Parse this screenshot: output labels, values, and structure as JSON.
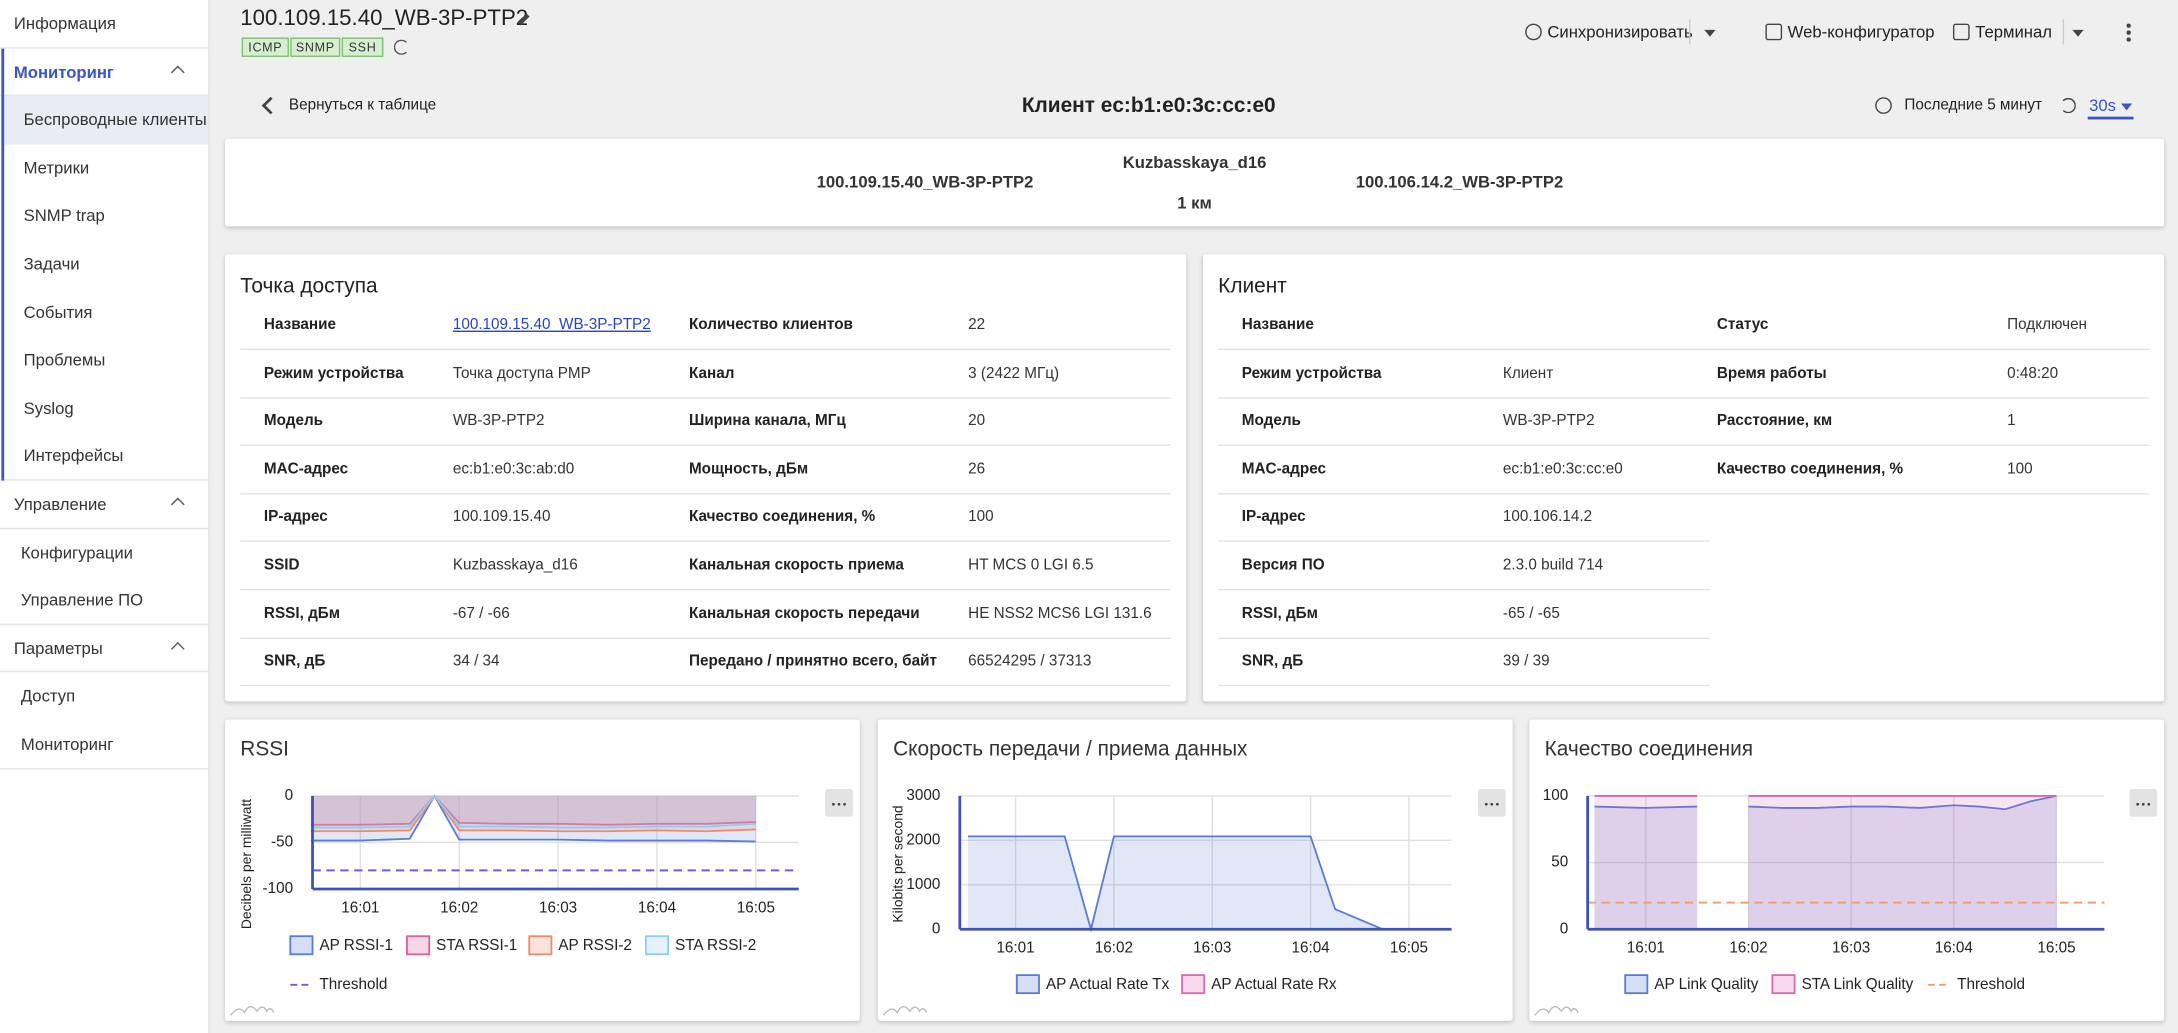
{
  "sidebar": {
    "top": "Информация",
    "sections": [
      {
        "title": "Мониторинг",
        "active": true,
        "items": [
          {
            "label": "Беспроводные клиенты",
            "selected": true
          },
          {
            "label": "Метрики"
          },
          {
            "label": "SNMP trap"
          },
          {
            "label": "Задачи"
          },
          {
            "label": "События"
          },
          {
            "label": "Проблемы"
          },
          {
            "label": "Syslog"
          },
          {
            "label": "Интерфейсы"
          }
        ]
      },
      {
        "title": "Управление",
        "items": [
          {
            "label": "Конфигурации"
          },
          {
            "label": "Управление ПО"
          }
        ]
      },
      {
        "title": "Параметры",
        "items": [
          {
            "label": "Доступ"
          },
          {
            "label": "Мониторинг"
          }
        ]
      }
    ]
  },
  "header": {
    "title": "100.109.15.40_WB-3P-PTP2",
    "tags": [
      "ICMP",
      "SNMP",
      "SSH"
    ],
    "actions": [
      "Синхронизировать",
      "Web-конфигуратор",
      "Терминал"
    ]
  },
  "toolbar": {
    "back": "Вернуться к таблице",
    "title": "Клиент ec:b1:e0:3c:cc:e0",
    "period": "Последние 5 минут",
    "refresh": "30s"
  },
  "link": {
    "left": "100.109.15.40_WB-3P-PTP2",
    "ssid": "Kuzbasskaya_d16",
    "distance": "1 км",
    "right": "100.106.14.2_WB-3P-PTP2"
  },
  "access_point": {
    "title": "Точка доступа",
    "rows": [
      [
        "Название",
        "100.109.15.40_WB-3P-PTP2",
        "Количество клиентов",
        "22"
      ],
      [
        "Режим устройства",
        "Точка доступа PMP",
        "Канал",
        "3 (2422 МГц)"
      ],
      [
        "Модель",
        "WB-3P-PTP2",
        "Ширина канала, МГц",
        "20"
      ],
      [
        "MAC-адрес",
        "ec:b1:e0:3c:ab:d0",
        "Мощность, дБм",
        "26"
      ],
      [
        "IP-адрес",
        "100.109.15.40",
        "Качество соединения, %",
        "100"
      ],
      [
        "SSID",
        "Kuzbasskaya_d16",
        "Канальная скорость приема",
        "HT MCS 0 LGI 6.5"
      ],
      [
        "RSSI, дБм",
        "-67 / -66",
        "Канальная скорость передачи",
        "HE NSS2 MCS6 LGI 131.6"
      ],
      [
        "SNR, дБ",
        "34 / 34",
        "Передано / принятно всего, байт",
        "66524295 / 37313"
      ]
    ]
  },
  "client": {
    "title": "Клиент",
    "rows": [
      [
        "Название",
        ""
      ],
      [
        "Режим устройства",
        "Клиент"
      ],
      [
        "Модель",
        "WB-3P-PTP2"
      ],
      [
        "MAC-адрес",
        "ec:b1:e0:3c:cc:e0"
      ],
      [
        "IP-адрес",
        "100.106.14.2"
      ],
      [
        "Версия ПО",
        "2.3.0 build 714"
      ],
      [
        "RSSI, дБм",
        "-65 / -65"
      ],
      [
        "SNR, дБ",
        "39 / 39"
      ]
    ],
    "extra_rows": [
      [
        "Статус",
        "Подключен"
      ],
      [
        "Время работы",
        "0:48:20"
      ],
      [
        "Расстояние, км",
        "1"
      ],
      [
        "Качество соединения, %",
        "100"
      ]
    ]
  },
  "charts": [
    {
      "type": "area",
      "title": "RSSI",
      "y_label": "Decibels per milliwatt",
      "xlim": [
        "16:00:31",
        "16:05:26"
      ],
      "xticks": [
        "16:01",
        "16:02",
        "16:03",
        "16:04",
        "16:05"
      ],
      "ylim": [
        -100,
        0
      ],
      "yticks": [
        -100,
        -50,
        0
      ],
      "grid": true,
      "x": [
        "16:00:30",
        "16:01:00",
        "16:01:30",
        "16:01:45",
        "16:02:00",
        "16:02:30",
        "16:03:00",
        "16:03:30",
        "16:04:00",
        "16:04:30",
        "16:05:00"
      ],
      "series": [
        {
          "name": "AP RSSI-1",
          "color": "#5b7bd5",
          "values": [
            -48,
            -48,
            -46,
            0,
            -47,
            -47,
            -47,
            -48,
            -48,
            -48,
            -49
          ]
        },
        {
          "name": "STA RSSI-1",
          "color": "#e0609e",
          "values": [
            -31,
            -31,
            -30,
            0,
            -29,
            -30,
            -30,
            -31,
            -30,
            -30,
            -28
          ]
        },
        {
          "name": "AP RSSI-2",
          "color": "#f08a6c",
          "values": [
            -38,
            -38,
            -37,
            0,
            -37,
            -37,
            -38,
            -38,
            -37,
            -38,
            -36
          ]
        },
        {
          "name": "STA RSSI-2",
          "color": "#8fcdef",
          "values": [
            -34,
            -34,
            -33,
            0,
            -33,
            -33,
            -34,
            -34,
            -33,
            -33,
            -30
          ]
        }
      ],
      "threshold": {
        "name": "Threshold",
        "color": "#6a5fd6",
        "value": -80
      }
    },
    {
      "type": "area",
      "title": "Скорость передачи / приема данных",
      "y_label": "Kilobits per second",
      "xlim": [
        "16:00:26",
        "16:05:26"
      ],
      "xticks": [
        "16:01",
        "16:02",
        "16:03",
        "16:04",
        "16:05"
      ],
      "ylim": [
        0,
        3000
      ],
      "yticks": [
        0,
        1000,
        2000,
        3000
      ],
      "grid": true,
      "x": [
        "16:00:31",
        "16:01:30",
        "16:01:46",
        "16:02:00",
        "16:04:00",
        "16:04:15",
        "16:04:44",
        "16:05:26"
      ],
      "series": [
        {
          "name": "AP Actual Rate Tx",
          "color": "#5b7bd5",
          "values": [
            2090,
            2090,
            0,
            2090,
            2090,
            450,
            0,
            0
          ]
        },
        {
          "name": "AP Actual Rate Rx",
          "color": "#d46ab5",
          "values": [
            0,
            0,
            0,
            0,
            0,
            0,
            0,
            0
          ]
        }
      ]
    },
    {
      "type": "area",
      "title": "Качество соединения",
      "xlim": [
        "16:00:26",
        "16:05:28"
      ],
      "xticks": [
        "16:01",
        "16:02",
        "16:03",
        "16:04",
        "16:05"
      ],
      "ylim": [
        0,
        100
      ],
      "yticks": [
        0,
        50,
        100
      ],
      "grid": true,
      "x": [
        "16:00:30",
        "16:01:00",
        "16:01:30",
        "16:01:45",
        "16:02:00",
        "16:02:20",
        "16:02:40",
        "16:03:00",
        "16:03:20",
        "16:03:40",
        "16:04:00",
        "16:04:15",
        "16:04:30",
        "16:04:45",
        "16:05:00"
      ],
      "series": [
        {
          "name": "AP Link Quality",
          "color": "#5b7bd5",
          "values": [
            92,
            91,
            92,
            null,
            92,
            91,
            91,
            92,
            92,
            91,
            93,
            92,
            90,
            96,
            100
          ]
        },
        {
          "name": "STA Link Quality",
          "color": "#d46ab5",
          "values": [
            100,
            100,
            100,
            null,
            100,
            100,
            100,
            100,
            100,
            100,
            100,
            100,
            100,
            100,
            100
          ]
        }
      ],
      "threshold": {
        "name": "Threshold",
        "color": "#f0a070",
        "value": 20
      }
    }
  ]
}
